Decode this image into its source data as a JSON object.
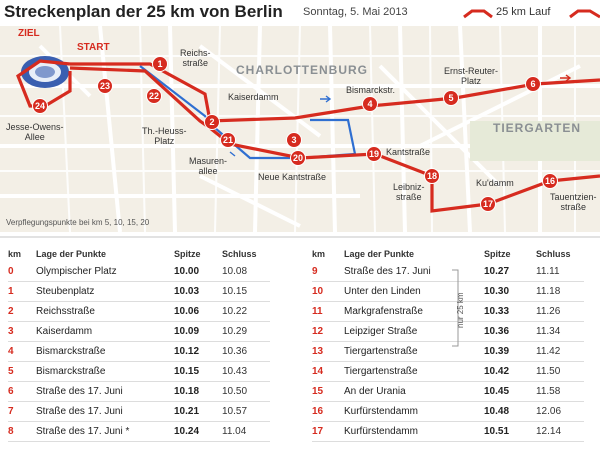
{
  "header": {
    "title": "Streckenplan der 25 km von Berlin",
    "date": "Sonntag, 5. Mai 2013",
    "legend_run": "25 km Lauf"
  },
  "map": {
    "districts": [
      "CHARLOTTENBURG",
      "TIERGARTEN"
    ],
    "start_label": "START",
    "finish_label": "ZIEL",
    "streets": {
      "reichsstrasse": "Reichs-\nstraße",
      "kaiserdamm": "Kaiserdamm",
      "bismarckstr": "Bismarckstr.",
      "ernst_reuter": "Ernst-Reuter-\nPlatz",
      "jesse_owens": "Jesse-Owens-\nAllee",
      "theodor_heuss": "Th.-Heuss-\nPlatz",
      "masuren": "Masuren-\nallee",
      "neue_kant": "Neue Kantstraße",
      "kantstrasse": "Kantstraße",
      "leibniz": "Leibniz-\nstraße",
      "kudamm": "Ku'damm",
      "tauentzien": "Tauentzien-\nstraße"
    },
    "markers": [
      "1",
      "2",
      "3",
      "4",
      "5",
      "6",
      "16",
      "17",
      "18",
      "19",
      "20",
      "21",
      "22",
      "23",
      "24"
    ],
    "footnote": "Verpflegungspunkte bei km 5, 10, 15, 20",
    "colors": {
      "route": "#d62b1f",
      "detour": "#2f6fd1",
      "map_bg": "#f3efe6"
    }
  },
  "table": {
    "headers": {
      "km": "km",
      "lage": "Lage der Punkte",
      "spitze": "Spitze",
      "schluss": "Schluss"
    },
    "side_note": "nur 25 km",
    "left": [
      {
        "km": "0",
        "lage": "Olympischer Platz",
        "spitze": "10.00",
        "schluss": "10.08"
      },
      {
        "km": "1",
        "lage": "Steubenplatz",
        "spitze": "10.03",
        "schluss": "10.15"
      },
      {
        "km": "2",
        "lage": "Reichsstraße",
        "spitze": "10.06",
        "schluss": "10.22"
      },
      {
        "km": "3",
        "lage": "Kaiserdamm",
        "spitze": "10.09",
        "schluss": "10.29"
      },
      {
        "km": "4",
        "lage": "Bismarckstraße",
        "spitze": "10.12",
        "schluss": "10.36"
      },
      {
        "km": "5",
        "lage": "Bismarckstraße",
        "spitze": "10.15",
        "schluss": "10.43"
      },
      {
        "km": "6",
        "lage": "Straße des 17. Juni",
        "spitze": "10.18",
        "schluss": "10.50"
      },
      {
        "km": "7",
        "lage": "Straße des 17. Juni",
        "spitze": "10.21",
        "schluss": "10.57"
      },
      {
        "km": "8",
        "lage": "Straße des 17. Juni *",
        "spitze": "10.24",
        "schluss": "11.04"
      }
    ],
    "right": [
      {
        "km": "9",
        "lage": "Straße des 17. Juni",
        "spitze": "10.27",
        "schluss": "11.11"
      },
      {
        "km": "10",
        "lage": "Unter den Linden",
        "spitze": "10.30",
        "schluss": "11.18"
      },
      {
        "km": "11",
        "lage": "Markgrafenstraße",
        "spitze": "10.33",
        "schluss": "11.26"
      },
      {
        "km": "12",
        "lage": "Leipziger Straße",
        "spitze": "10.36",
        "schluss": "11.34"
      },
      {
        "km": "13",
        "lage": "Tiergartenstraße",
        "spitze": "10.39",
        "schluss": "11.42"
      },
      {
        "km": "14",
        "lage": "Tiergartenstraße",
        "spitze": "10.42",
        "schluss": "11.50"
      },
      {
        "km": "15",
        "lage": "An der Urania",
        "spitze": "10.45",
        "schluss": "11.58"
      },
      {
        "km": "16",
        "lage": "Kurfürstendamm",
        "spitze": "10.48",
        "schluss": "12.06"
      },
      {
        "km": "17",
        "lage": "Kurfürstendamm",
        "spitze": "10.51",
        "schluss": "12.14"
      }
    ]
  }
}
